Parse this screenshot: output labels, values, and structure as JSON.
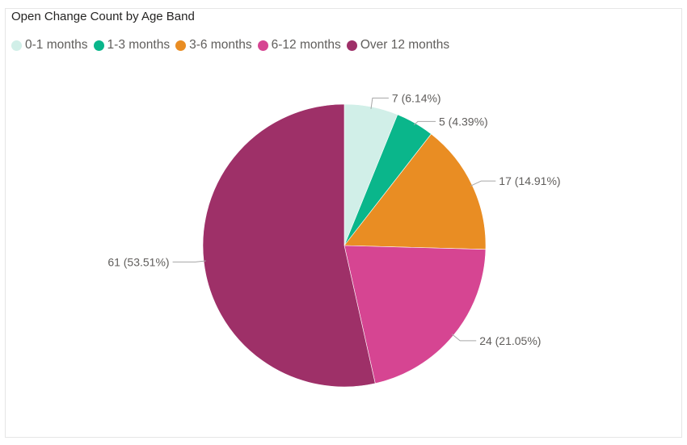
{
  "chart_data": {
    "type": "pie",
    "title": "Open Change Count by Age Band",
    "legend_position": "top-left",
    "categories": [
      "0-1 months",
      "1-3 months",
      "3-6 months",
      "6-12 months",
      "Over 12 months"
    ],
    "values": [
      7,
      5,
      17,
      24,
      61
    ],
    "colors": [
      "#d1efe8",
      "#0ab68b",
      "#e98d23",
      "#d64592",
      "#9e3068"
    ],
    "data_labels": [
      "7 (6.14%)",
      "5 (4.39%)",
      "17 (14.91%)",
      "24 (21.05%)",
      "61 (53.51%)"
    ]
  }
}
